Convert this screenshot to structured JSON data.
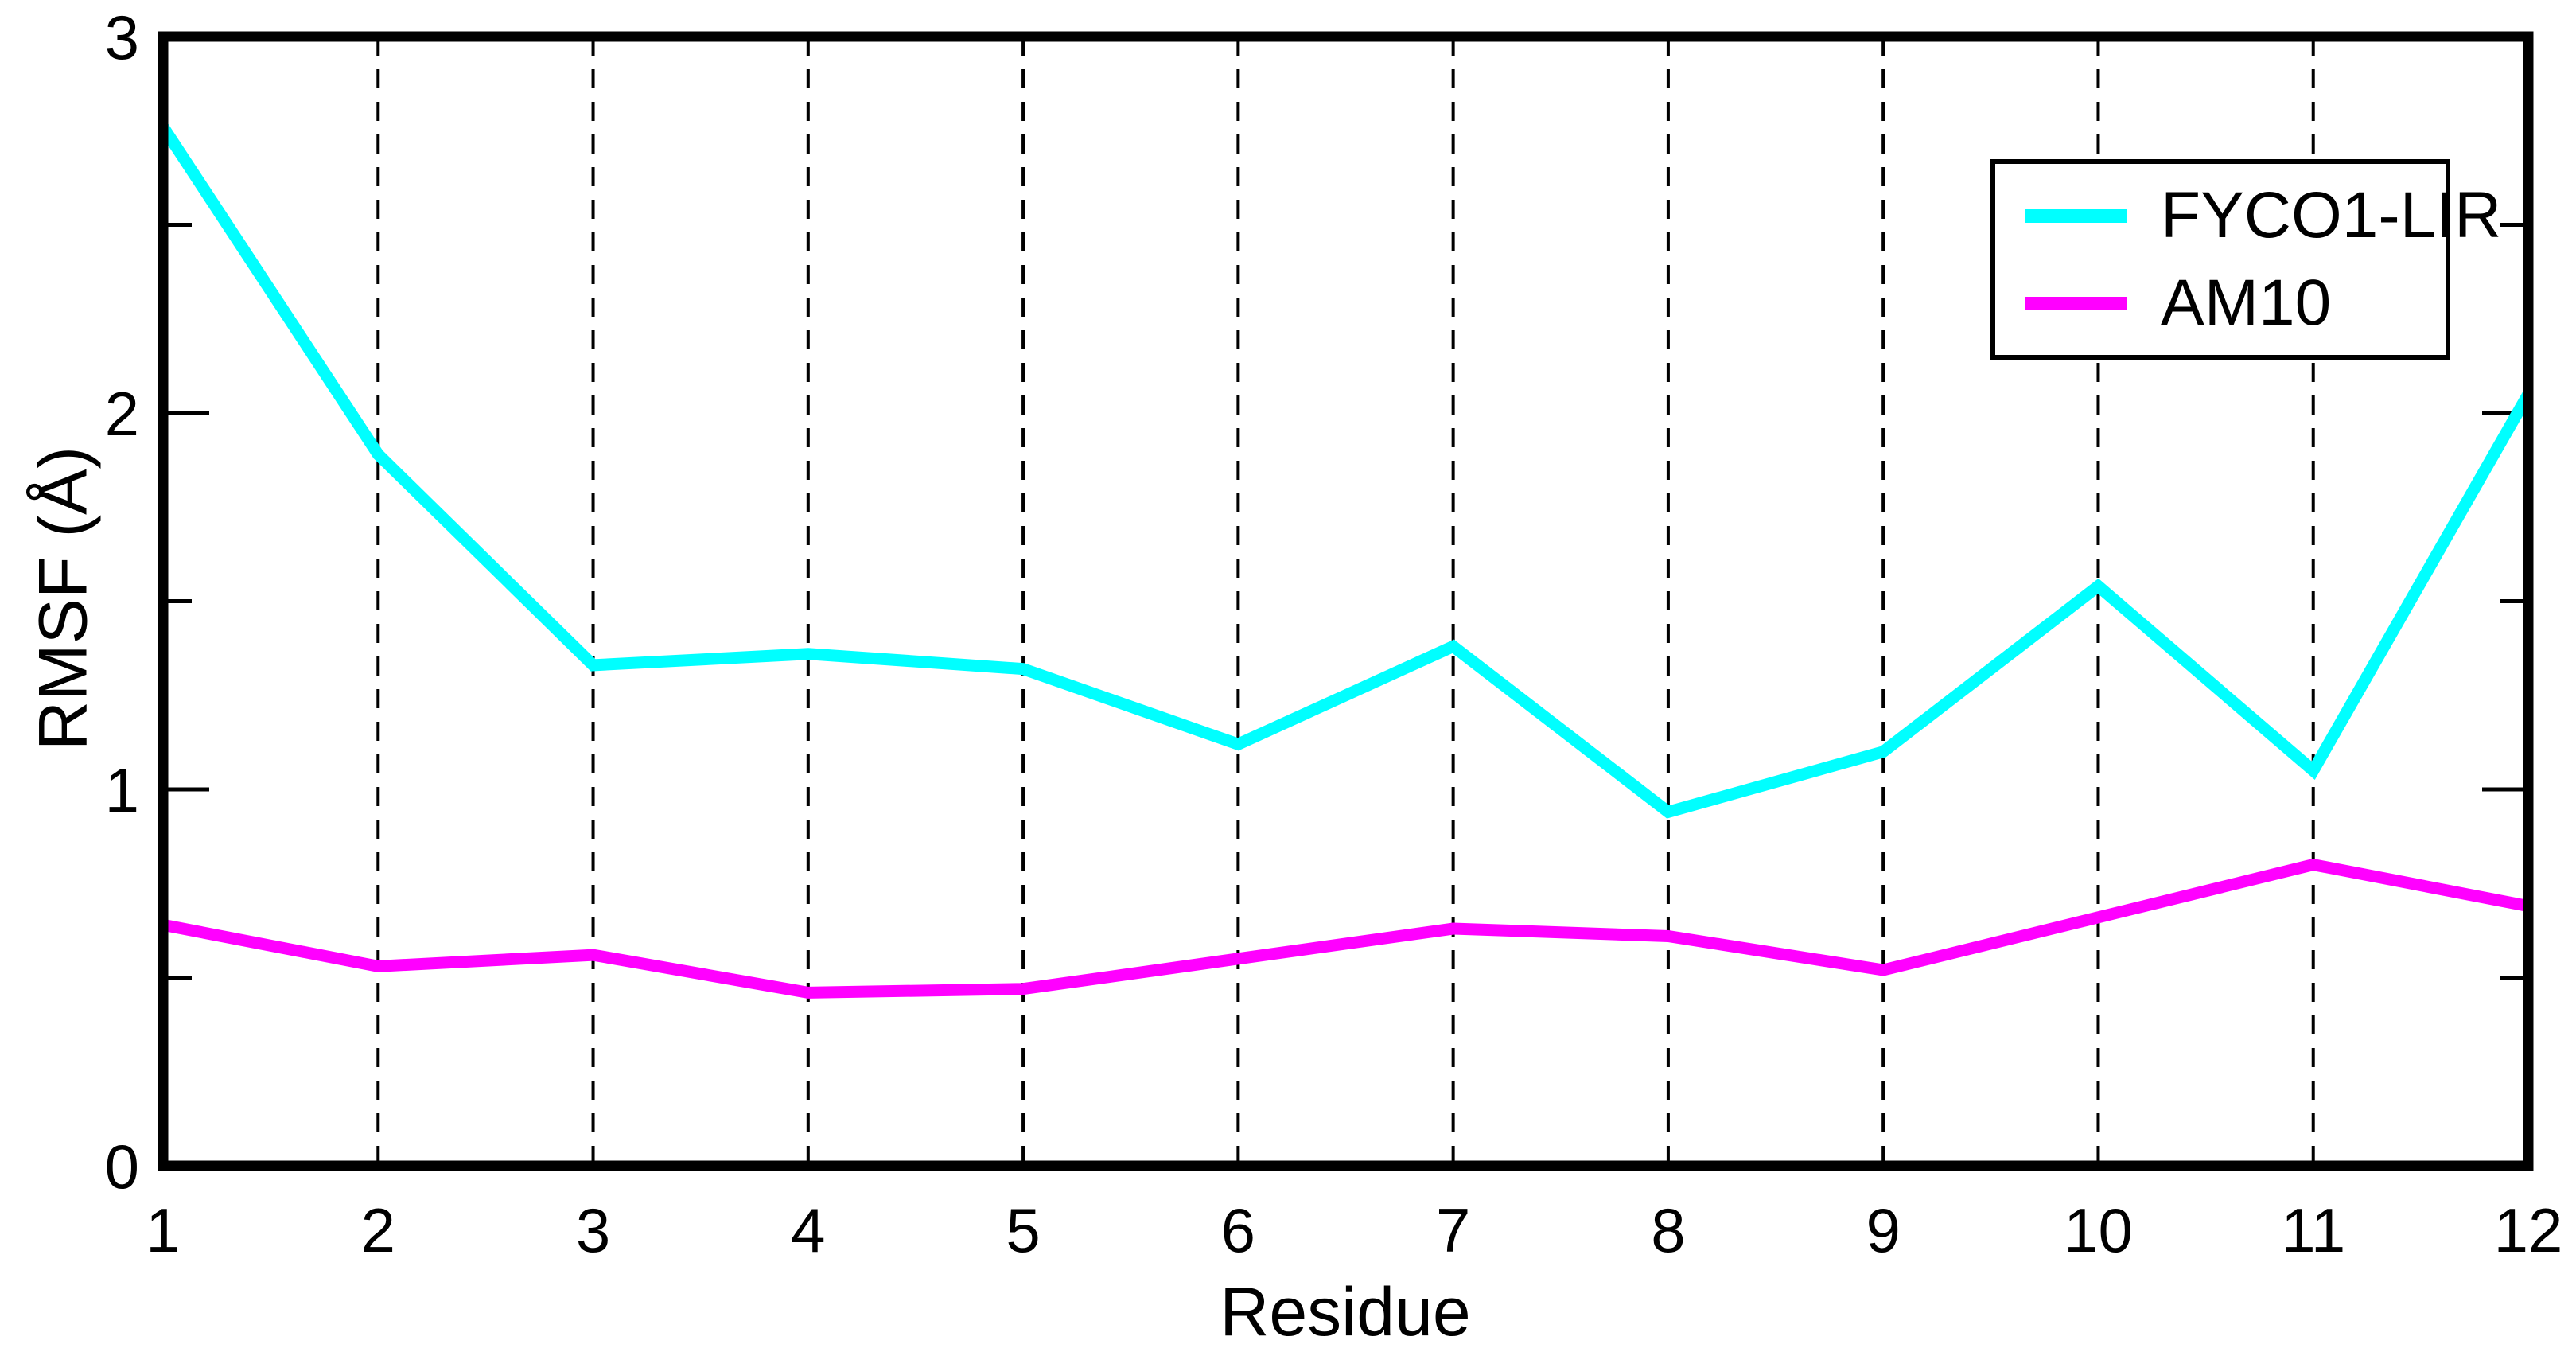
{
  "chart_data": {
    "type": "line",
    "title": "",
    "xlabel": "Residue",
    "ylabel": "RMSF (Å)",
    "xlim": [
      1,
      12
    ],
    "ylim": [
      0,
      3
    ],
    "x": [
      1,
      2,
      3,
      4,
      5,
      6,
      7,
      8,
      9,
      10,
      11,
      12
    ],
    "x_tick_labels": [
      "1",
      "2",
      "3",
      "4",
      "5",
      "6",
      "7",
      "8",
      "9",
      "10",
      "11",
      "12"
    ],
    "y_major_ticks": [
      0,
      1,
      2,
      3
    ],
    "y_major_tick_labels": [
      "0",
      "1",
      "2",
      "3"
    ],
    "y_minor_ticks": [
      0.5,
      1.5,
      2.5
    ],
    "grid_x": [
      2,
      3,
      4,
      5,
      6,
      7,
      8,
      9,
      10,
      11
    ],
    "grid_style": "vertical-dashed",
    "legend_position": "top-right",
    "axis_color": "#000000",
    "background_color": "#ffffff",
    "series": [
      {
        "name": "FYCO1-LIR",
        "color": "#00ffff",
        "values": [
          2.76,
          1.89,
          1.33,
          1.36,
          1.32,
          1.12,
          1.38,
          0.94,
          1.1,
          1.54,
          1.05,
          2.05
        ]
      },
      {
        "name": "AM10",
        "color": "#ff00ff",
        "values": [
          0.64,
          0.53,
          0.56,
          0.46,
          0.47,
          0.55,
          0.63,
          0.61,
          0.52,
          0.66,
          0.8,
          0.69
        ]
      }
    ]
  }
}
